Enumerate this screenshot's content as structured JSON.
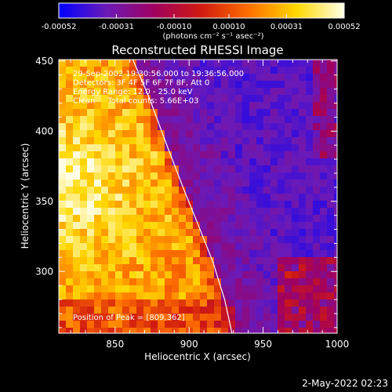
{
  "chart_data": {
    "type": "heatmap",
    "title": "Reconstructed RHESSI Image",
    "xlabel": "Heliocentric X (arcsec)",
    "ylabel": "Heliocentric Y (arcsec)",
    "xlim": [
      812,
      1000
    ],
    "ylim": [
      256,
      451
    ],
    "x_ticks": [
      "850",
      "900",
      "950",
      "1000"
    ],
    "y_ticks": [
      "300",
      "350",
      "400",
      "450"
    ],
    "colorbar": {
      "min": -0.00052,
      "max": 0.00052,
      "tick_labels": [
        "-0.00052",
        "-0.00031",
        "-0.00010",
        "0.00010",
        "0.00031",
        "0.00052"
      ],
      "unit_label": "(photons cm⁻² s⁻¹ asec⁻²)",
      "colormap": [
        "#0000ff",
        "#6a1ab8",
        "#a00060",
        "#d01a10",
        "#ff7000",
        "#ffd800",
        "#ffffe8"
      ]
    },
    "annotations": [
      "29-Sep-2002 19:30:56.000 to 19:36:56.000",
      "Detectors: 3F 4F 5F 6F 7F 8F, Att 0",
      "Energy Range: 12.0 - 25.0 keV",
      "Clean     Total counts: 5.66E+03"
    ],
    "peak_label": "Position of Peak = [809,362]",
    "peak": [
      809,
      362
    ],
    "limb_curve": [
      [
        862,
        451
      ],
      [
        873,
        424
      ],
      [
        885,
        390
      ],
      [
        897,
        357
      ],
      [
        907,
        331
      ],
      [
        916,
        307
      ],
      [
        924,
        280
      ],
      [
        929,
        256
      ]
    ],
    "source_region": "bright flare emission left of the solar limb, diffuse purple-blue background to the right"
  },
  "footer": {
    "timestamp": "2-May-2022 02:23"
  }
}
